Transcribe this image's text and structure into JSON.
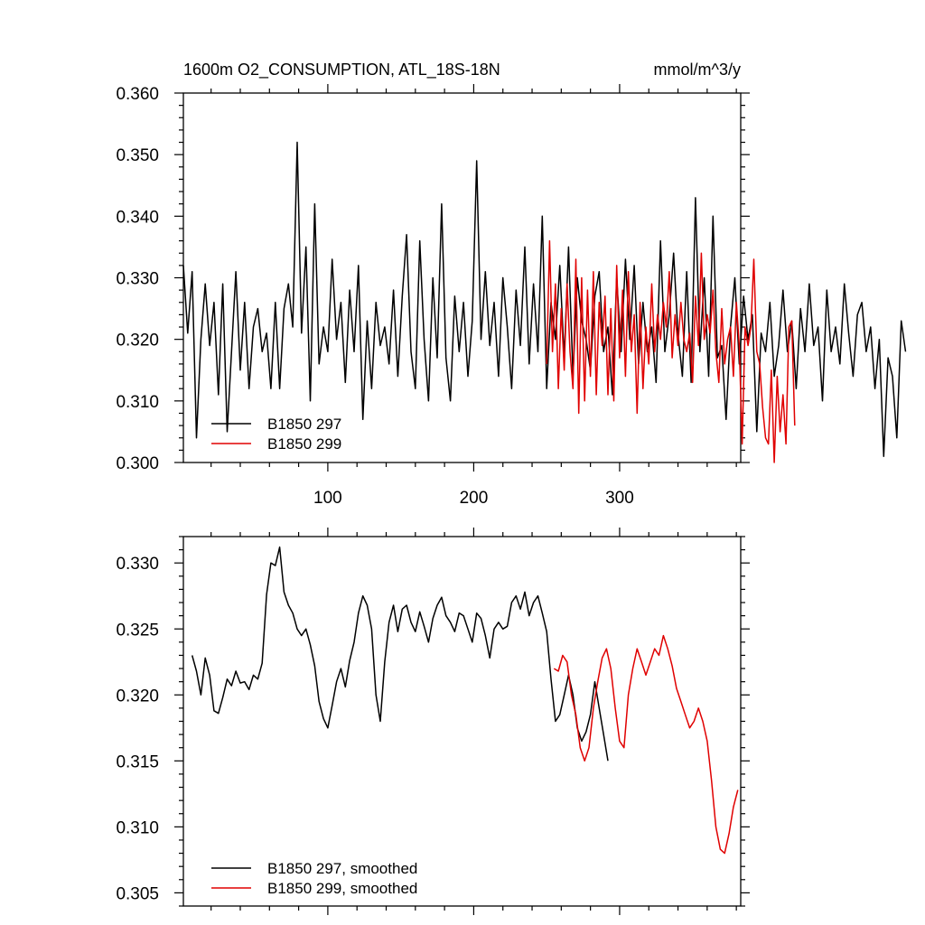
{
  "chart_data": [
    {
      "type": "line",
      "title": "1600m O2_CONSUMPTION, ATL_18S-18N",
      "units": "mmol/m^3/y",
      "xlim": [
        1,
        383
      ],
      "ylim": [
        0.3,
        0.36
      ],
      "yticks": [
        0.3,
        0.31,
        0.32,
        0.33,
        0.34,
        0.35,
        0.36
      ],
      "ytick_labels": [
        "0.300",
        "0.310",
        "0.320",
        "0.330",
        "0.340",
        "0.350",
        "0.360"
      ],
      "xticks": [
        100,
        200,
        300
      ],
      "xtick_labels": [
        "100",
        "200",
        "300"
      ],
      "legend_position": "bottom-left",
      "series": [
        {
          "name": "B1850 297",
          "color": "#000000",
          "x_start": 1,
          "x_step": 3,
          "values": [
            0.332,
            0.321,
            0.331,
            0.304,
            0.32,
            0.329,
            0.319,
            0.326,
            0.311,
            0.329,
            0.305,
            0.318,
            0.331,
            0.315,
            0.326,
            0.312,
            0.322,
            0.325,
            0.318,
            0.321,
            0.312,
            0.326,
            0.312,
            0.325,
            0.329,
            0.322,
            0.352,
            0.321,
            0.335,
            0.31,
            0.342,
            0.316,
            0.322,
            0.318,
            0.333,
            0.32,
            0.326,
            0.313,
            0.328,
            0.318,
            0.332,
            0.307,
            0.323,
            0.312,
            0.326,
            0.319,
            0.322,
            0.316,
            0.328,
            0.314,
            0.327,
            0.337,
            0.318,
            0.312,
            0.336,
            0.32,
            0.31,
            0.33,
            0.317,
            0.342,
            0.317,
            0.31,
            0.327,
            0.318,
            0.326,
            0.314,
            0.323,
            0.349,
            0.32,
            0.331,
            0.319,
            0.326,
            0.314,
            0.33,
            0.322,
            0.312,
            0.328,
            0.319,
            0.335,
            0.316,
            0.329,
            0.318,
            0.34,
            0.312,
            0.326,
            0.32,
            0.332,
            0.317,
            0.335,
            0.314,
            0.33,
            0.323,
            0.32,
            0.315,
            0.327,
            0.331,
            0.318,
            0.322,
            0.311,
            0.33,
            0.318,
            0.333,
            0.32,
            0.332,
            0.316,
            0.326,
            0.318,
            0.322,
            0.313,
            0.336,
            0.318,
            0.324,
            0.334,
            0.321,
            0.314,
            0.331,
            0.313,
            0.343,
            0.318,
            0.33,
            0.314,
            0.34,
            0.317,
            0.319,
            0.307,
            0.322,
            0.33,
            0.316,
            0.327,
            0.32,
            0.324,
            0.305,
            0.321,
            0.318,
            0.326,
            0.314,
            0.319,
            0.328,
            0.318,
            0.323,
            0.312,
            0.325,
            0.318,
            0.329,
            0.319,
            0.322,
            0.31,
            0.328,
            0.318,
            0.322,
            0.316,
            0.329,
            0.321,
            0.314,
            0.324,
            0.326,
            0.318,
            0.322,
            0.312,
            0.32,
            0.301,
            0.317,
            0.314,
            0.304,
            0.323,
            0.318
          ]
        },
        {
          "name": "B1850 299",
          "color": "#e00000",
          "x_start": 250,
          "x_step": 2,
          "values": [
            0.316,
            0.336,
            0.318,
            0.329,
            0.312,
            0.325,
            0.315,
            0.329,
            0.318,
            0.312,
            0.333,
            0.308,
            0.33,
            0.31,
            0.328,
            0.314,
            0.331,
            0.311,
            0.326,
            0.319,
            0.327,
            0.311,
            0.325,
            0.31,
            0.332,
            0.317,
            0.328,
            0.314,
            0.331,
            0.318,
            0.324,
            0.308,
            0.326,
            0.312,
            0.322,
            0.316,
            0.329,
            0.318,
            0.324,
            0.32,
            0.326,
            0.322,
            0.331,
            0.317,
            0.324,
            0.319,
            0.326,
            0.32,
            0.318,
            0.321,
            0.313,
            0.327,
            0.319,
            0.334,
            0.32,
            0.324,
            0.321,
            0.328,
            0.318,
            0.313,
            0.325,
            0.316,
            0.32,
            0.322,
            0.314,
            0.326,
            0.319,
            0.303,
            0.322,
            0.319,
            0.322,
            0.333,
            0.318,
            0.316,
            0.309,
            0.304,
            0.303,
            0.315,
            0.3,
            0.314,
            0.305,
            0.311,
            0.303,
            0.322,
            0.323,
            0.306
          ]
        }
      ]
    },
    {
      "type": "line",
      "title": "",
      "xlim": [
        1,
        383
      ],
      "ylim": [
        0.304,
        0.332
      ],
      "yticks": [
        0.305,
        0.31,
        0.315,
        0.32,
        0.325,
        0.33
      ],
      "ytick_labels": [
        "0.305",
        "0.310",
        "0.315",
        "0.320",
        "0.325",
        "0.330"
      ],
      "xticks": [
        100,
        200,
        300
      ],
      "xtick_labels": [
        "",
        "",
        ""
      ],
      "legend_position": "bottom-left",
      "series": [
        {
          "name": "B1850 297, smoothed",
          "color": "#000000",
          "x_start": 7,
          "x_step": 3,
          "values": [
            0.323,
            0.3218,
            0.32,
            0.3228,
            0.3215,
            0.3188,
            0.3186,
            0.3198,
            0.3212,
            0.3207,
            0.3218,
            0.3209,
            0.321,
            0.3204,
            0.3215,
            0.3212,
            0.3224,
            0.3276,
            0.33,
            0.3298,
            0.3312,
            0.3278,
            0.3268,
            0.3262,
            0.325,
            0.3245,
            0.325,
            0.3238,
            0.3222,
            0.3195,
            0.3182,
            0.3175,
            0.3192,
            0.321,
            0.322,
            0.3206,
            0.3226,
            0.324,
            0.3262,
            0.3275,
            0.3268,
            0.325,
            0.32,
            0.318,
            0.3225,
            0.3255,
            0.3268,
            0.3248,
            0.3265,
            0.3268,
            0.3255,
            0.3248,
            0.3263,
            0.3252,
            0.324,
            0.3258,
            0.3268,
            0.3274,
            0.326,
            0.3255,
            0.3248,
            0.3262,
            0.326,
            0.325,
            0.324,
            0.3262,
            0.3258,
            0.3245,
            0.3228,
            0.325,
            0.3255,
            0.325,
            0.3252,
            0.327,
            0.3275,
            0.3265,
            0.3278,
            0.326,
            0.327,
            0.3275,
            0.3262,
            0.3248,
            0.3212,
            0.318,
            0.3185,
            0.32,
            0.3215,
            0.32,
            0.3175,
            0.3165,
            0.3172,
            0.3185,
            0.321,
            0.319,
            0.317,
            0.315
          ]
        },
        {
          "name": "B1850 299, smoothed",
          "color": "#e00000",
          "x_start": 255,
          "x_step": 3,
          "values": [
            0.322,
            0.3218,
            0.323,
            0.3225,
            0.32,
            0.3185,
            0.316,
            0.315,
            0.316,
            0.319,
            0.321,
            0.3228,
            0.3235,
            0.322,
            0.319,
            0.3165,
            0.316,
            0.32,
            0.322,
            0.3235,
            0.3225,
            0.3215,
            0.3225,
            0.3235,
            0.323,
            0.3245,
            0.3235,
            0.3222,
            0.3205,
            0.3195,
            0.3185,
            0.3175,
            0.318,
            0.319,
            0.318,
            0.3165,
            0.3135,
            0.31,
            0.3083,
            0.308,
            0.3095,
            0.3115,
            0.3128
          ]
        }
      ]
    }
  ]
}
